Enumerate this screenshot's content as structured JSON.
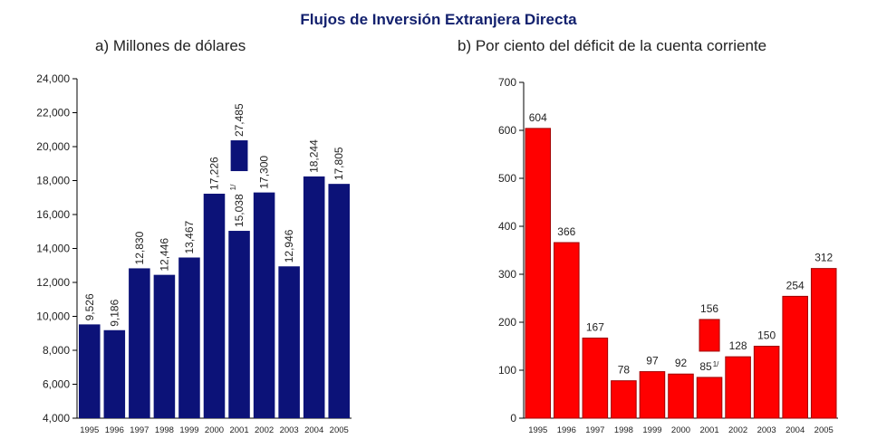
{
  "title": "Flujos de Inversión Extranjera Directa",
  "chart_data": [
    {
      "type": "bar",
      "subtitle": "a)  Millones de dólares",
      "categories": [
        "1995",
        "1996",
        "1997",
        "1998",
        "1999",
        "2000",
        "2001",
        "2002",
        "2003",
        "2004",
        "2005"
      ],
      "values": [
        9526,
        9186,
        12830,
        12446,
        13467,
        17226,
        15038,
        17300,
        12946,
        18244,
        17805
      ],
      "value_labels": [
        "9,526",
        "9,186",
        "12,830",
        "12,446",
        "13,467",
        "17,226",
        "15,038",
        "17,300",
        "12,946",
        "18,244",
        "17,805"
      ],
      "label_rotation": "vertical",
      "color": "#0c1278",
      "ylim": [
        4000,
        24000
      ],
      "yticks": [
        {
          "value": 4000,
          "label": "4,000"
        },
        {
          "value": 6000,
          "label": "6,000"
        },
        {
          "value": 8000,
          "label": "8,000"
        },
        {
          "value": 10000,
          "label": "10,000"
        },
        {
          "value": 12000,
          "label": "12,000"
        },
        {
          "value": 14000,
          "label": "14,000"
        },
        {
          "value": 16000,
          "label": "16,000"
        },
        {
          "value": 18000,
          "label": "18,000"
        },
        {
          "value": 20000,
          "label": "20,000"
        },
        {
          "value": 22000,
          "label": "22,000"
        },
        {
          "value": 24000,
          "label": "24,000"
        }
      ],
      "broken_bar": {
        "category": "2001",
        "value": 27485,
        "value_label": "27,485",
        "note": "1/"
      }
    },
    {
      "type": "bar",
      "subtitle": "b)  Por ciento del déficit de la cuenta corriente",
      "categories": [
        "1995",
        "1996",
        "1997",
        "1998",
        "1999",
        "2000",
        "2001",
        "2002",
        "2003",
        "2004",
        "2005"
      ],
      "values": [
        604,
        366,
        167,
        78,
        97,
        92,
        85,
        128,
        150,
        254,
        312
      ],
      "label_rotation": "horizontal",
      "color": "#ff0000",
      "ylim": [
        0,
        700
      ],
      "yticks": [
        0,
        100,
        200,
        300,
        400,
        500,
        600,
        700
      ],
      "broken_bar": {
        "category": "2001",
        "value": 156,
        "note": "1/"
      }
    }
  ]
}
